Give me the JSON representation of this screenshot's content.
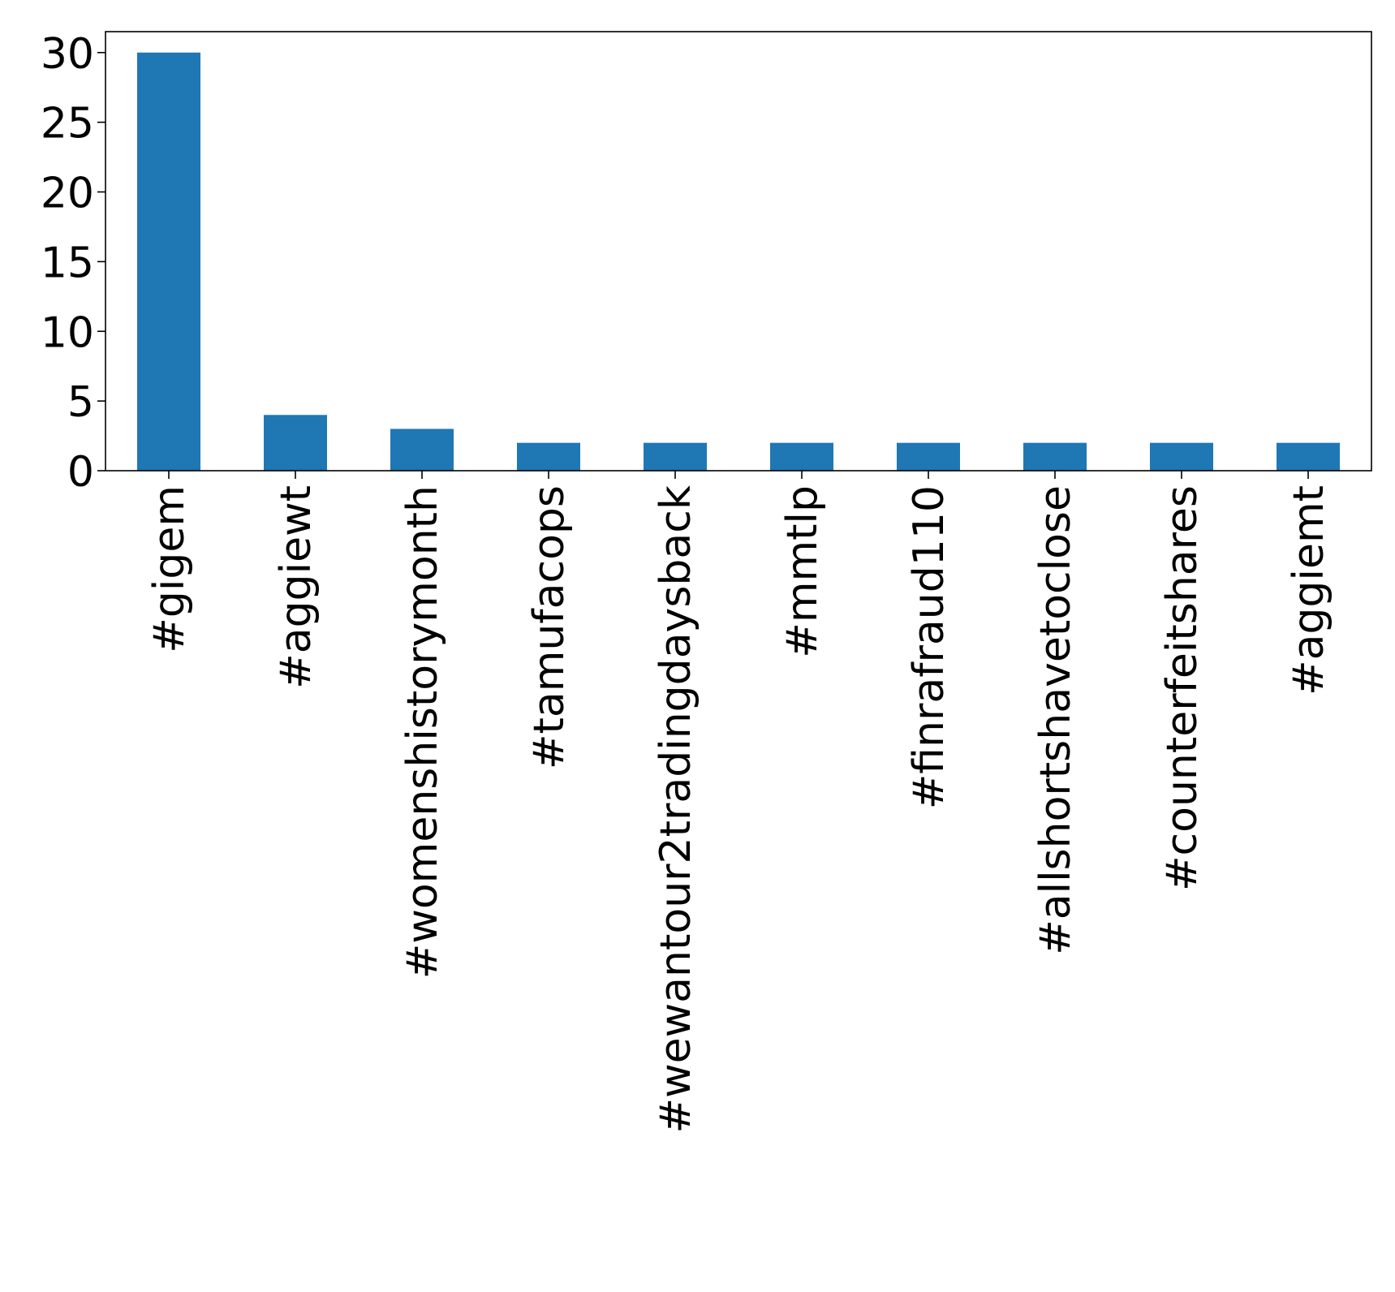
{
  "chart_data": {
    "type": "bar",
    "title": "",
    "xlabel": "",
    "ylabel": "",
    "categories": [
      "#gigem",
      "#aggiewt",
      "#womenshistorymonth",
      "#tamufacops",
      "#wewantour2tradingdaysback",
      "#mmtlp",
      "#finrafraud110",
      "#allshortshavetoclose",
      "#counterfeitshares",
      "#aggiemt"
    ],
    "values": [
      30,
      4,
      3,
      2,
      2,
      2,
      2,
      2,
      2,
      2
    ],
    "ylim": [
      0,
      31.5
    ],
    "yticks": [
      0,
      5,
      10,
      15,
      20,
      25,
      30
    ],
    "bar_color": "#1f77b4",
    "grid": false,
    "legend": "none"
  }
}
